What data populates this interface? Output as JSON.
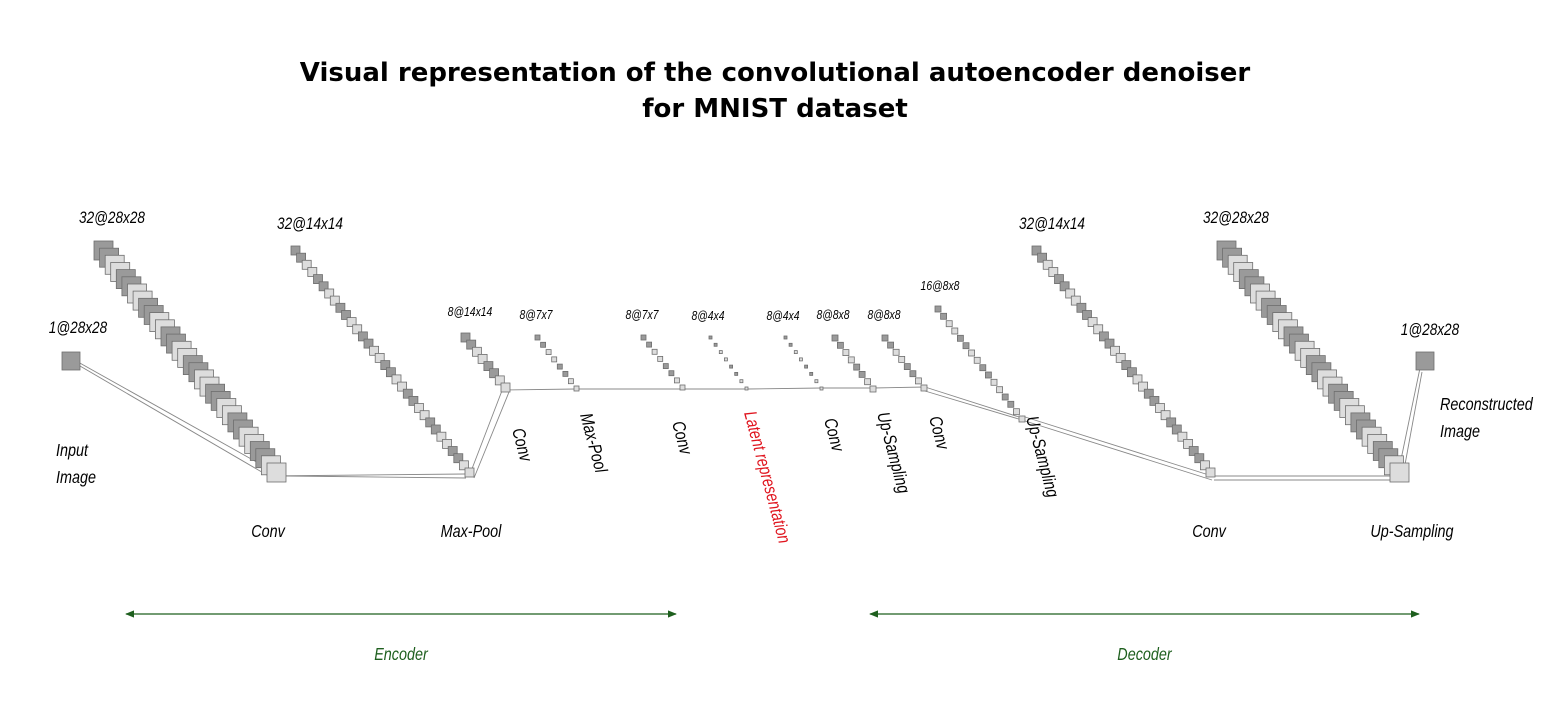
{
  "title": {
    "line1": "Visual representation of the convolutional autoencoder denoiser",
    "line2": "for MNIST dataset"
  },
  "colors": {
    "text": "#000000",
    "latent": "#e0141e",
    "bracket": "#1e5f1e",
    "dark_fill": "#9a9a9a",
    "light_fill": "#dddddd",
    "stroke": "#6e6e6e"
  },
  "layers": [
    {
      "id": "input",
      "shape": "1@28x28",
      "count": 1
    },
    {
      "id": "conv1",
      "shape": "32@28x28",
      "count": 32
    },
    {
      "id": "pool1",
      "shape": "32@14x14",
      "count": 32
    },
    {
      "id": "conv2",
      "shape": "8@14x14",
      "count": 8
    },
    {
      "id": "pool2",
      "shape": "8@7x7",
      "count": 8
    },
    {
      "id": "conv3",
      "shape": "8@7x7",
      "count": 8
    },
    {
      "id": "latent",
      "shape": "8@4x4",
      "count": 8
    },
    {
      "id": "conv4",
      "shape": "8@4x4",
      "count": 8
    },
    {
      "id": "up1",
      "shape": "8@8x8",
      "count": 8
    },
    {
      "id": "conv5",
      "shape": "8@8x8",
      "count": 8
    },
    {
      "id": "conv6",
      "shape": "16@8x8",
      "count": 16
    },
    {
      "id": "up2",
      "shape": "32@14x14",
      "count": 32
    },
    {
      "id": "conv7",
      "shape": "32@28x28",
      "count": 32
    },
    {
      "id": "output",
      "shape": "1@28x28",
      "count": 1
    }
  ],
  "operations": [
    {
      "id": "op1",
      "label": "Conv"
    },
    {
      "id": "op2",
      "label": "Max-Pool"
    },
    {
      "id": "op3",
      "label": "Conv"
    },
    {
      "id": "op4",
      "label": "Max-Pool"
    },
    {
      "id": "op5",
      "label": "Conv"
    },
    {
      "id": "op6",
      "label": "Latent  representation",
      "highlight": true
    },
    {
      "id": "op7",
      "label": "Conv"
    },
    {
      "id": "op8",
      "label": "Up-Sampling"
    },
    {
      "id": "op9",
      "label": "Conv"
    },
    {
      "id": "op10",
      "label": "Up-Sampling"
    },
    {
      "id": "op11",
      "label": "Conv"
    },
    {
      "id": "op12",
      "label": "Up-Sampling"
    }
  ],
  "image_labels": {
    "input": [
      "Input",
      "Image"
    ],
    "output": [
      "Reconstructed",
      "Image"
    ]
  },
  "sections": {
    "encoder": "Encoder",
    "decoder": "Decoder"
  }
}
